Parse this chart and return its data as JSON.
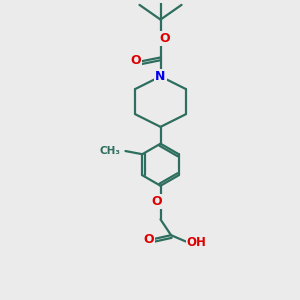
{
  "background_color": "#ebebeb",
  "bond_color": "#2d6e5e",
  "N_color": "#0000ee",
  "O_color": "#dd0000",
  "line_width": 1.6,
  "figsize": [
    3.0,
    3.0
  ],
  "dpi": 100,
  "xlim": [
    -4,
    4
  ],
  "ylim": [
    -6,
    8
  ]
}
